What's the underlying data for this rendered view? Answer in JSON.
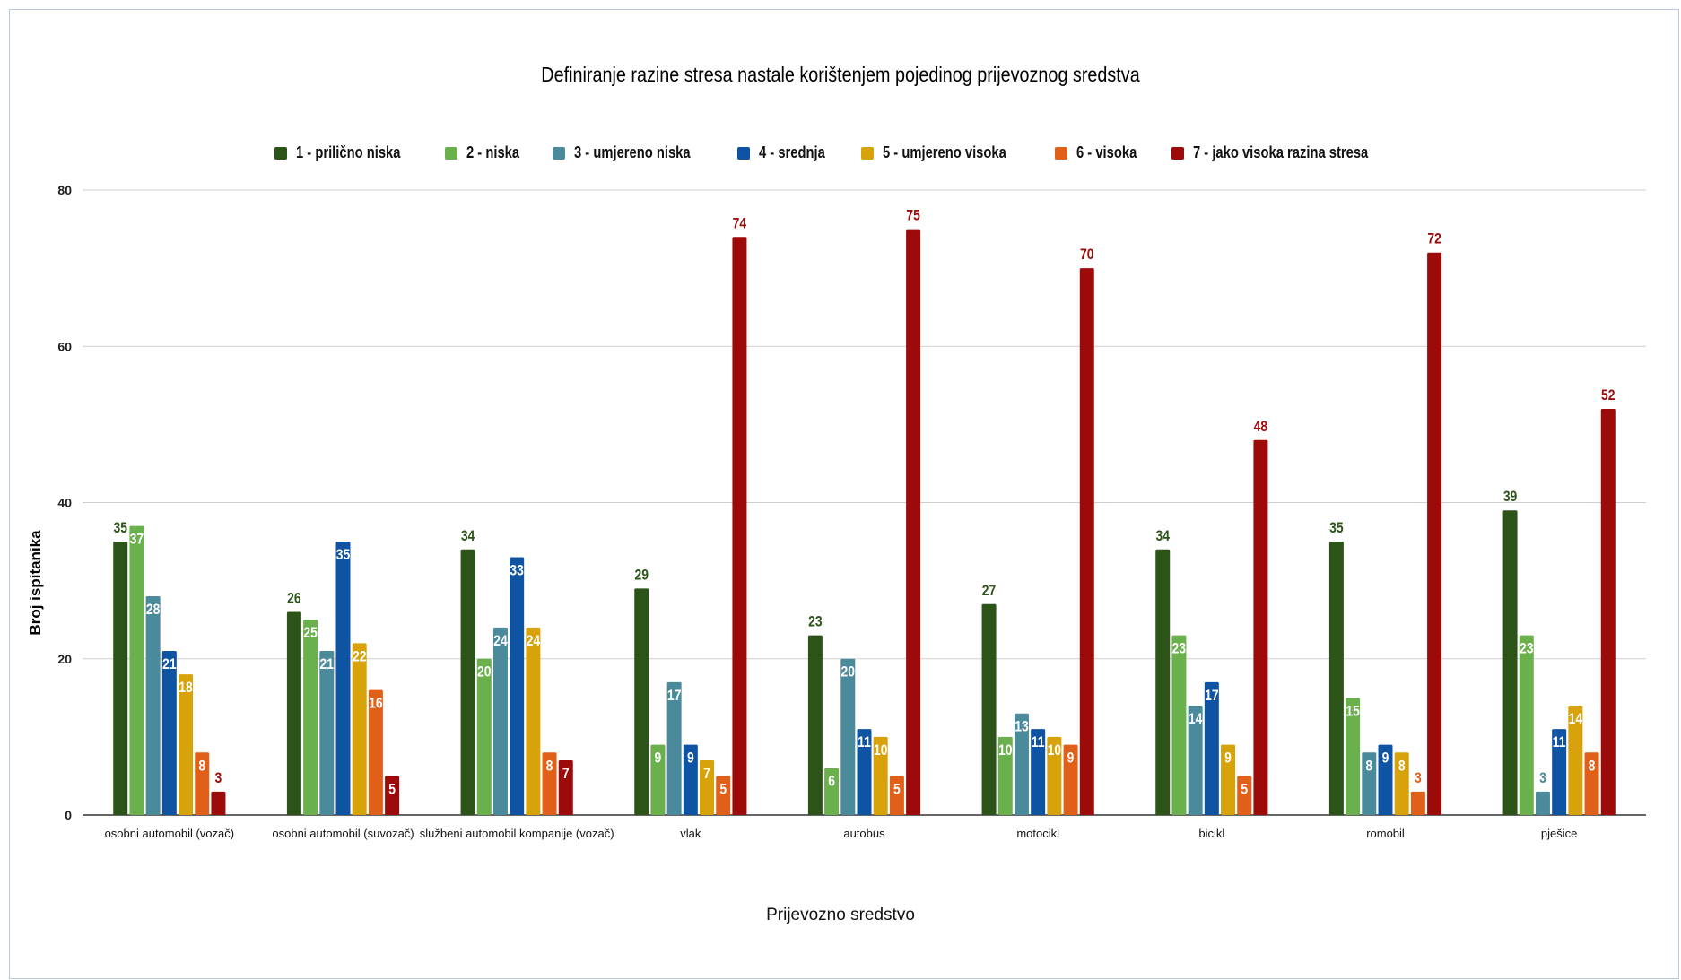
{
  "chart_data": {
    "type": "bar",
    "title": "Definiranje razine stresa nastale korištenjem pojedinog prijevoznog sredstva",
    "xlabel": "Prijevozno sredstvo",
    "ylabel": "Broj ispitanika",
    "ylim": [
      0,
      80
    ],
    "yticks": [
      0,
      20,
      40,
      60,
      80
    ],
    "grid": true,
    "legend_position": "top",
    "categories": [
      "osobni automobil (vozač)",
      "osobni automobil (suvozač)",
      "službeni automobil kompanije (vozač)",
      "vlak",
      "autobus",
      "motocikl",
      "bicikl",
      "romobil",
      "pješice"
    ],
    "series": [
      {
        "name": "1 - prilično niska",
        "color": "#2d5418",
        "values": [
          35,
          26,
          34,
          29,
          23,
          27,
          34,
          35,
          39
        ]
      },
      {
        "name": "2 - niska",
        "color": "#6ab04c",
        "values": [
          37,
          25,
          20,
          9,
          6,
          10,
          23,
          15,
          23
        ]
      },
      {
        "name": "3 - umjereno niska",
        "color": "#4b8a9a",
        "values": [
          28,
          21,
          24,
          17,
          20,
          13,
          14,
          8,
          3
        ]
      },
      {
        "name": "4 - srednja",
        "color": "#0e54a3",
        "values": [
          21,
          35,
          33,
          9,
          11,
          11,
          17,
          9,
          11
        ]
      },
      {
        "name": "5 - umjereno visoka",
        "color": "#d8a20a",
        "values": [
          18,
          22,
          24,
          7,
          10,
          10,
          9,
          8,
          14
        ]
      },
      {
        "name": "6 - visoka",
        "color": "#e0601a",
        "values": [
          8,
          16,
          8,
          5,
          5,
          9,
          5,
          3,
          8
        ]
      },
      {
        "name": "7 - jako visoka razina stresa",
        "color": "#9c0a0a",
        "values": [
          3,
          5,
          7,
          74,
          75,
          70,
          48,
          72,
          52
        ]
      }
    ]
  }
}
